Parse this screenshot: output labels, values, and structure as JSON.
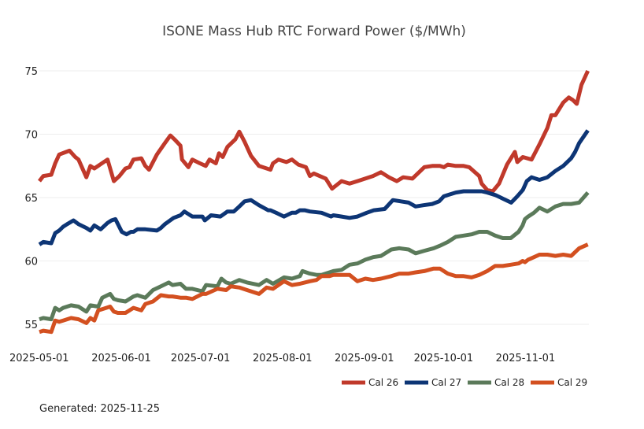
{
  "chart_data": {
    "type": "line",
    "title": "ISONE Mass Hub RTC Forward Power ($/MWh)",
    "xlabel": "",
    "ylabel": "",
    "x_start": "2025-05-01",
    "x_end": "2025-11-25",
    "ylim": [
      53.8,
      76.5
    ],
    "yticks": [
      55,
      60,
      65,
      70,
      75
    ],
    "ytick_labels": [
      "55",
      "60",
      "65",
      "70",
      "75"
    ],
    "xticks": [
      "2025-05-01",
      "2025-06-01",
      "2025-07-01",
      "2025-08-01",
      "2025-09-01",
      "2025-10-01",
      "2025-11-01"
    ],
    "grid": "horizontal",
    "legend_position": "bottom-right",
    "series": [
      {
        "name": "Cal 26",
        "color": "#c0392b",
        "days": [
          0,
          1.5,
          4.5,
          6,
          7.5,
          11.4,
          13.6,
          14.8,
          17.8,
          19.3,
          20.8,
          25.8,
          28.2,
          30.3,
          32.6,
          34.1,
          35.6,
          38.6,
          40.1,
          41.5,
          44.5,
          47.5,
          49.6,
          51.1,
          53.4,
          54,
          56.4,
          57.9,
          60.8,
          63,
          64.4,
          66.8,
          68,
          69.4,
          71.2,
          74.2,
          75.7,
          77.7,
          80.1,
          83.1,
          87.5,
          88.4,
          90.5,
          93.5,
          95.6,
          98,
          100.9,
          102.4,
          103.9,
          108.4,
          110.8,
          114.4,
          117.4,
          120.4,
          126.3,
          129.3,
          132.3,
          135.3,
          137.7,
          141.2,
          145.7,
          148.7,
          151.6,
          153.1,
          154.6,
          157.6,
          160.6,
          162.7,
          166.5,
          167.4,
          169.5,
          171.6,
          174,
          177,
          180,
          180.9,
          183,
          186.3,
          189.3,
          192.3,
          193.8,
          195.3,
          198.3,
          200.4,
          201.9,
          203.4,
          205.2,
          207.6
        ],
        "values": [
          66.3,
          66.7,
          66.8,
          67.7,
          68.4,
          68.7,
          68.2,
          68.0,
          66.6,
          67.5,
          67.3,
          68.0,
          66.3,
          66.7,
          67.3,
          67.4,
          68.0,
          68.1,
          67.5,
          67.2,
          68.4,
          69.3,
          69.9,
          69.6,
          69.1,
          68.0,
          67.4,
          68.0,
          67.7,
          67.5,
          68.0,
          67.7,
          68.5,
          68.2,
          69.0,
          69.6,
          70.2,
          69.4,
          68.3,
          67.5,
          67.2,
          67.7,
          68.0,
          67.8,
          68.0,
          67.6,
          67.4,
          66.7,
          66.9,
          66.5,
          65.7,
          66.3,
          66.1,
          66.3,
          66.7,
          67.0,
          66.6,
          66.3,
          66.6,
          66.5,
          67.4,
          67.5,
          67.5,
          67.4,
          67.6,
          67.5,
          67.5,
          67.4,
          66.7,
          66.1,
          65.6,
          65.5,
          66.1,
          67.6,
          68.6,
          67.8,
          68.2,
          68.0,
          69.2,
          70.5,
          71.5,
          71.5,
          72.5,
          72.9,
          72.7,
          72.4,
          73.9,
          75.0
        ]
      },
      {
        "name": "Cal 27",
        "color": "#0d3575",
        "days": [
          0,
          1.5,
          4.5,
          6,
          7.5,
          9,
          10.5,
          12.9,
          14.8,
          17.8,
          19.3,
          20.8,
          23.2,
          25.8,
          27.3,
          28.8,
          31.2,
          33,
          34.7,
          35.6,
          37.1,
          40.1,
          44.5,
          46,
          47.5,
          48.8,
          50.8,
          53.4,
          54.9,
          57.9,
          61.7,
          62.6,
          65,
          68.5,
          71.2,
          73.6,
          75.7,
          77.7,
          80.1,
          83.1,
          86.6,
          87.5,
          89.6,
          92.6,
          95.6,
          97.1,
          98.6,
          100.4,
          102.4,
          106.8,
          110.4,
          111.3,
          114.4,
          117.4,
          120.4,
          123.9,
          126.6,
          130.7,
          133.8,
          136.8,
          139.8,
          142.4,
          145.4,
          148.7,
          151.3,
          153.1,
          154.6,
          157.6,
          160.6,
          164.5,
          167.4,
          169.5,
          172.6,
          175.6,
          178.6,
          180.9,
          183,
          184.5,
          186.3,
          189.3,
          192.3,
          195.3,
          198.3,
          201.3,
          202.8,
          204.3,
          207.6
        ],
        "values": [
          61.3,
          61.5,
          61.4,
          62.2,
          62.4,
          62.7,
          62.9,
          63.2,
          62.9,
          62.6,
          62.4,
          62.8,
          62.5,
          63.0,
          63.2,
          63.3,
          62.3,
          62.1,
          62.3,
          62.3,
          62.5,
          62.5,
          62.4,
          62.6,
          62.9,
          63.1,
          63.4,
          63.6,
          63.9,
          63.5,
          63.5,
          63.2,
          63.6,
          63.5,
          63.9,
          63.9,
          64.3,
          64.7,
          64.8,
          64.4,
          64.0,
          64.0,
          63.8,
          63.5,
          63.8,
          63.8,
          64.0,
          64.0,
          63.9,
          63.8,
          63.5,
          63.6,
          63.5,
          63.4,
          63.5,
          63.8,
          64.0,
          64.1,
          64.8,
          64.7,
          64.6,
          64.3,
          64.4,
          64.5,
          64.7,
          65.1,
          65.2,
          65.4,
          65.5,
          65.5,
          65.5,
          65.4,
          65.2,
          64.9,
          64.6,
          65.1,
          65.6,
          66.3,
          66.6,
          66.4,
          66.6,
          67.1,
          67.5,
          68.1,
          68.6,
          69.3,
          70.3
        ]
      },
      {
        "name": "Cal 28",
        "color": "#5b7a5a",
        "days": [
          0,
          1.5,
          4.5,
          6,
          7.5,
          9,
          12,
          14.8,
          17.8,
          19.3,
          22.3,
          23.8,
          26.8,
          28.2,
          29.7,
          32.6,
          35.6,
          37.1,
          40.1,
          43,
          46,
          49,
          50.4,
          53.4,
          55.5,
          57.9,
          61.7,
          63.1,
          67.4,
          68.9,
          70.7,
          72.4,
          75.7,
          78.6,
          83.1,
          86,
          88.4,
          92.6,
          95.6,
          98.6,
          99.6,
          102.4,
          104.9,
          106.8,
          109.8,
          111.3,
          114.4,
          117.4,
          120.4,
          123.4,
          126.3,
          129.3,
          133.2,
          136.2,
          139.8,
          142.4,
          145.7,
          149.2,
          151.6,
          154.6,
          157.6,
          160.6,
          163.6,
          166.5,
          169.5,
          172.5,
          175.4,
          178.4,
          181.4,
          182.9,
          183.8,
          185,
          187.2,
          189.3,
          192.3,
          195.3,
          198.3,
          201.3,
          204.3,
          207.6
        ],
        "values": [
          55.4,
          55.5,
          55.4,
          56.3,
          56.1,
          56.3,
          56.5,
          56.4,
          56.0,
          56.5,
          56.4,
          57.1,
          57.4,
          57.0,
          56.9,
          56.8,
          57.2,
          57.3,
          57.1,
          57.7,
          58.0,
          58.3,
          58.1,
          58.2,
          57.8,
          57.8,
          57.6,
          58.1,
          58.0,
          58.6,
          58.3,
          58.2,
          58.5,
          58.3,
          58.1,
          58.5,
          58.2,
          58.7,
          58.6,
          58.8,
          59.2,
          59.0,
          58.9,
          58.9,
          59.1,
          59.2,
          59.3,
          59.7,
          59.8,
          60.1,
          60.3,
          60.4,
          60.9,
          61.0,
          60.9,
          60.6,
          60.8,
          61.0,
          61.2,
          61.5,
          61.9,
          62.0,
          62.1,
          62.3,
          62.3,
          62.0,
          61.8,
          61.8,
          62.3,
          62.8,
          63.3,
          63.5,
          63.8,
          64.2,
          63.9,
          64.3,
          64.5,
          64.5,
          64.6,
          65.4
        ]
      },
      {
        "name": "Cal 29",
        "color": "#d35020",
        "days": [
          0,
          1.5,
          4.5,
          6,
          7.5,
          9,
          12,
          14.8,
          17.8,
          19.3,
          20.8,
          22.3,
          23.8,
          26.8,
          28.2,
          29.7,
          32.6,
          35.6,
          38.6,
          40.1,
          43,
          46,
          49,
          50.4,
          53.4,
          55.5,
          57.9,
          61.7,
          63.1,
          67.4,
          70.7,
          72.4,
          75.7,
          78.6,
          83.1,
          86,
          88.4,
          92.6,
          95.6,
          98.6,
          102.4,
          104.9,
          106.8,
          109.8,
          111.3,
          114.4,
          117.4,
          120.4,
          123.4,
          126.3,
          129.3,
          133.2,
          136.2,
          139.8,
          142.4,
          145.7,
          149.2,
          151.6,
          154.6,
          157.6,
          160.6,
          163.6,
          166.5,
          169.5,
          172.5,
          175.4,
          178.4,
          181.4,
          182.9,
          183.8,
          185,
          187.2,
          189.3,
          192.3,
          195.3,
          198.3,
          201.3,
          204.3,
          207.6
        ],
        "values": [
          54.4,
          54.5,
          54.4,
          55.3,
          55.2,
          55.3,
          55.5,
          55.4,
          55.1,
          55.5,
          55.3,
          56.1,
          56.2,
          56.4,
          56.0,
          55.9,
          55.9,
          56.3,
          56.1,
          56.6,
          56.8,
          57.3,
          57.2,
          57.2,
          57.1,
          57.1,
          57.0,
          57.4,
          57.4,
          57.8,
          57.7,
          58.0,
          57.9,
          57.7,
          57.4,
          57.9,
          57.8,
          58.4,
          58.1,
          58.2,
          58.4,
          58.5,
          58.8,
          58.8,
          58.9,
          58.9,
          58.9,
          58.4,
          58.6,
          58.5,
          58.6,
          58.8,
          59.0,
          59.0,
          59.1,
          59.2,
          59.4,
          59.4,
          59.0,
          58.8,
          58.8,
          58.7,
          58.9,
          59.2,
          59.6,
          59.6,
          59.7,
          59.8,
          60.0,
          59.9,
          60.1,
          60.3,
          60.5,
          60.5,
          60.4,
          60.5,
          60.4,
          61.0,
          61.3
        ]
      }
    ]
  },
  "footer": {
    "generated": "Generated: 2025-11-25"
  }
}
